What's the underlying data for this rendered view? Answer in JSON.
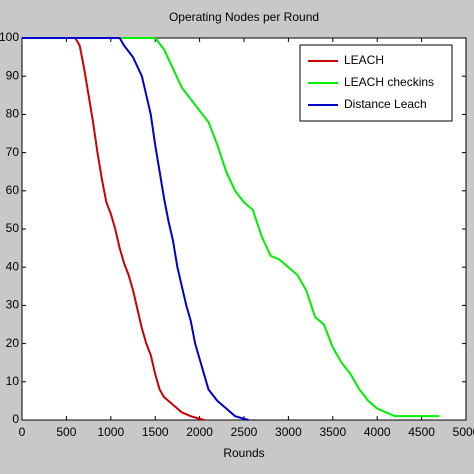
{
  "chart_data": {
    "type": "line",
    "title": "Operating Nodes per Round",
    "x_label": "Rounds",
    "xlim": [
      0,
      5000
    ],
    "xticks": [
      0,
      500,
      1000,
      1500,
      2000,
      2500,
      3000,
      3500,
      4000,
      4500,
      5000
    ],
    "ylim": [
      0,
      100
    ],
    "yticks": [
      0,
      10,
      20,
      30,
      40,
      50,
      60,
      70,
      80,
      90,
      100
    ],
    "legend": "top-right",
    "series": [
      {
        "name": "LEACH",
        "color": "#cc0000",
        "x": [
          0,
          600,
          650,
          700,
          750,
          800,
          850,
          900,
          950,
          1000,
          1050,
          1100,
          1150,
          1200,
          1250,
          1300,
          1350,
          1400,
          1450,
          1500,
          1550,
          1600,
          1700,
          1800,
          1900,
          2050
        ],
        "values": [
          100,
          100,
          98,
          92,
          85,
          78,
          70,
          63,
          57,
          54,
          50,
          45,
          41,
          38,
          34,
          29,
          24,
          20,
          17,
          12,
          8,
          6,
          4,
          2,
          1,
          0
        ]
      },
      {
        "name": "LEACH checkins",
        "color": "#00ee00",
        "x": [
          0,
          1500,
          1600,
          1700,
          1800,
          1900,
          2000,
          2100,
          2200,
          2300,
          2400,
          2500,
          2600,
          2700,
          2800,
          2900,
          3000,
          3100,
          3200,
          3300,
          3400,
          3500,
          3600,
          3700,
          3800,
          3900,
          4000,
          4100,
          4200,
          4400,
          4700
        ],
        "values": [
          100,
          100,
          97,
          92,
          87,
          84,
          81,
          78,
          72,
          65,
          60,
          57,
          55,
          48,
          43,
          42,
          40,
          38,
          34,
          27,
          25,
          19,
          15,
          12,
          8,
          5,
          3,
          2,
          1,
          1,
          1
        ]
      },
      {
        "name": "Distance Leach",
        "color": "#0000cc",
        "x": [
          0,
          1100,
          1150,
          1250,
          1350,
          1400,
          1450,
          1500,
          1550,
          1600,
          1650,
          1700,
          1750,
          1800,
          1850,
          1900,
          1950,
          2000,
          2050,
          2100,
          2200,
          2300,
          2400,
          2550
        ],
        "values": [
          100,
          100,
          98,
          95,
          90,
          85,
          80,
          72,
          65,
          58,
          52,
          47,
          40,
          35,
          30,
          26,
          20,
          16,
          12,
          8,
          5,
          3,
          1,
          0
        ]
      }
    ]
  }
}
